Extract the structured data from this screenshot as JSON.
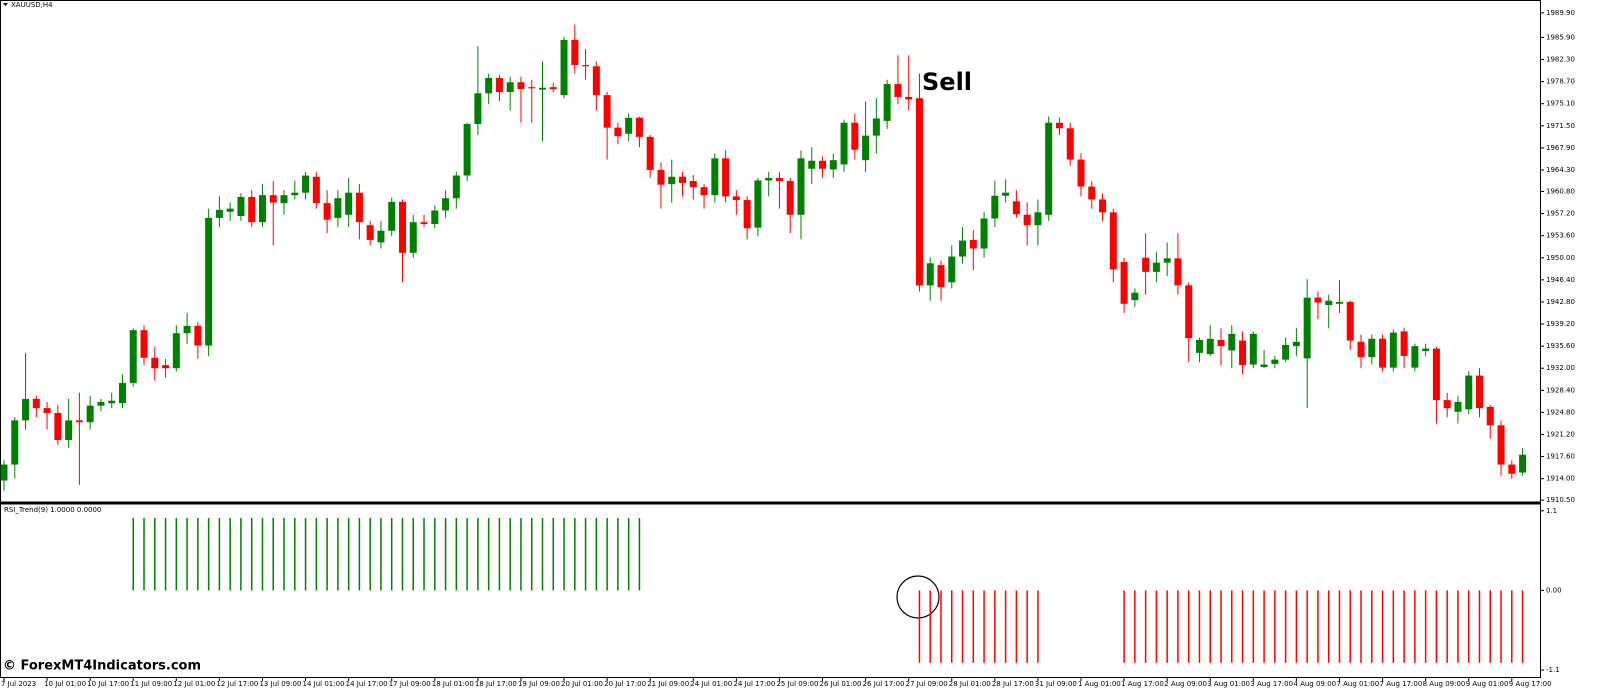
{
  "watermark": "© ForexMT4Indicators.com",
  "chart_data": [
    {
      "type": "candlestick",
      "title": "XAUUSD,H4",
      "annotation": "Sell",
      "up_color": "#008000",
      "down_color": "#ff0000",
      "ylim": [
        1910.2,
        1992.0
      ],
      "yticks": [
        {
          "value": 1989.9,
          "label": "1989.90"
        },
        {
          "value": 1985.9,
          "label": "1985.90"
        },
        {
          "value": 1982.3,
          "label": "1982.30"
        },
        {
          "value": 1978.7,
          "label": "1978.70"
        },
        {
          "value": 1975.1,
          "label": "1975.10"
        },
        {
          "value": 1971.5,
          "label": "1971.50"
        },
        {
          "value": 1967.9,
          "label": "1967.90"
        },
        {
          "value": 1964.3,
          "label": "1964.30"
        },
        {
          "value": 1960.8,
          "label": "1960.80"
        },
        {
          "value": 1957.2,
          "label": "1957.20"
        },
        {
          "value": 1953.6,
          "label": "1953.60"
        },
        {
          "value": 1950,
          "label": "1950.00"
        },
        {
          "value": 1946.4,
          "label": "1946.40"
        },
        {
          "value": 1942.8,
          "label": "1942.80"
        },
        {
          "value": 1939.2,
          "label": "1939.20"
        },
        {
          "value": 1935.6,
          "label": "1935.60"
        },
        {
          "value": 1932,
          "label": "1932.00"
        },
        {
          "value": 1928.4,
          "label": "1928.40"
        },
        {
          "value": 1924.8,
          "label": "1924.80"
        },
        {
          "value": 1921.2,
          "label": "1921.20"
        },
        {
          "value": 1917.6,
          "label": "1917.60"
        },
        {
          "value": 1914,
          "label": "1914.00"
        },
        {
          "value": 1910.5,
          "label": "1910.50"
        }
      ],
      "categories": [
        "7 Jul 2023",
        null,
        null,
        null,
        "10 Jul 01:00",
        null,
        null,
        null,
        "10 Jul 17:00",
        null,
        null,
        null,
        "11 Jul 09:00",
        null,
        null,
        null,
        "12 Jul 01:00",
        null,
        null,
        null,
        "12 Jul 17:00",
        null,
        null,
        null,
        "13 Jul 09:00",
        null,
        null,
        null,
        "14 Jul 01:00",
        null,
        null,
        null,
        "14 Jul 17:00",
        null,
        null,
        null,
        "17 Jul 09:00",
        null,
        null,
        null,
        "18 Jul 01:00",
        null,
        null,
        null,
        "18 Jul 17:00",
        null,
        null,
        null,
        "19 Jul 09:00",
        null,
        null,
        null,
        "20 Jul 01:00",
        null,
        null,
        null,
        "20 Jul 17:00",
        null,
        null,
        null,
        "21 Jul 09:00",
        null,
        null,
        null,
        "24 Jul 01:00",
        null,
        null,
        null,
        "24 Jul 17:00",
        null,
        null,
        null,
        "25 Jul 09:00",
        null,
        null,
        null,
        "26 Jul 01:00",
        null,
        null,
        null,
        "26 Jul 17:00",
        null,
        null,
        null,
        "27 Jul 09:00",
        null,
        null,
        null,
        "28 Jul 01:00",
        null,
        null,
        null,
        "28 Jul 17:00",
        null,
        null,
        null,
        "31 Jul 09:00",
        null,
        null,
        null,
        "1 Aug 01:00",
        null,
        null,
        null,
        "1 Aug 17:00",
        null,
        null,
        null,
        "2 Aug 09:00",
        null,
        null,
        null,
        "3 Aug 01:00",
        null,
        null,
        null,
        "3 Aug 17:00",
        null,
        null,
        null,
        "4 Aug 09:00",
        null,
        null,
        null,
        "7 Aug 01:00",
        null,
        null,
        null,
        "7 Aug 17:00",
        null,
        null,
        null,
        "8 Aug 09:00",
        null,
        null,
        null,
        "9 Aug 01:00",
        null,
        null,
        null,
        "9 Aug 17:00",
        null
      ],
      "open": [
        1913.7,
        1916.3,
        1923.5,
        1927,
        1925.5,
        1924.7,
        1920.3,
        1923.5,
        1923.2,
        1925.9,
        1926.3,
        1926.3,
        1929.6,
        1938.2,
        1933.7,
        1932.5,
        1932,
        1937.7,
        1938.9,
        1935.7,
        1956.5,
        1957.5,
        1956.8,
        1959.9,
        1955.8,
        1960.2,
        1958.9,
        1960.2,
        1960.6,
        1963.2,
        1958.9,
        1956.5,
        1957,
        1960.6,
        1955.3,
        1952.5,
        1954.4,
        1959.1,
        1950.8,
        1955.8,
        1955.5,
        1957.7,
        1959.7,
        1963.4,
        1971.8,
        1976.8,
        1979.3,
        1977,
        1978.6,
        1977.8,
        1977.4,
        1977.8,
        1976.5,
        1985.5,
        1981.4,
        1981.2,
        1976.5,
        1971.2,
        1970.2,
        1972.8,
        1969.7,
        1964.3,
        1962,
        1963.2,
        1962.5,
        1961.5,
        1960.2,
        1966.2,
        1960,
        1959.4,
        1954.9,
        1962.6,
        1963,
        1962.5,
        1957,
        1964.5,
        1965.8,
        1964.4,
        1965.2,
        1972,
        1965.9,
        1969.9,
        1972.3,
        1978.3,
        1976.2,
        1976,
        1945.5,
        1948.8,
        1946,
        1950.2,
        1952.9,
        1951.5,
        1956.4,
        1960.1,
        1959.2,
        1957,
        1955.3,
        1957,
        1972,
        1971.1,
        1966,
        1961.6,
        1959.5,
        1957.4,
        1949.3,
        1943.1,
        1950,
        1947.7,
        1949.2,
        1949.9,
        1945.5,
        1934.5,
        1934.3,
        1936.6,
        1934.9,
        1936.5,
        1932.6,
        1932.2,
        1932.7,
        1933.4,
        1935.6,
        1933.6,
        1943.5,
        1942.3,
        1942.5,
        1942.8,
        1936.3,
        1933.8,
        1936.8,
        1932.1,
        1938,
        1932.1,
        1934.8,
        1935.2,
        1926.8,
        1924.9,
        1925.3,
        1930.8,
        1925.7,
        1922.7,
        1916.3,
        1915
      ],
      "high": [
        1917,
        1924,
        1934.5,
        1927.5,
        1926.5,
        1926,
        1927,
        1928,
        1927.5,
        1927,
        1928,
        1931,
        1938.5,
        1939,
        1935.5,
        1933.5,
        1939,
        1941,
        1939.5,
        1958,
        1960,
        1959,
        1960.5,
        1961,
        1962,
        1962.5,
        1961,
        1962.5,
        1964,
        1964,
        1961,
        1961,
        1963,
        1962,
        1956,
        1956,
        1959.8,
        1959.5,
        1957,
        1957,
        1958.5,
        1961,
        1964,
        1972,
        1984.5,
        1980,
        1979.8,
        1979.5,
        1979.5,
        1979,
        1982,
        1978.5,
        1986,
        1988,
        1984,
        1982,
        1977,
        1972,
        1973.5,
        1973,
        1970,
        1965.5,
        1966,
        1964,
        1963.5,
        1962,
        1967,
        1967.5,
        1961,
        1960,
        1963,
        1964,
        1964,
        1963,
        1967.5,
        1968,
        1966.5,
        1967,
        1972.5,
        1973.5,
        1975.5,
        1976,
        1979,
        1983,
        1983,
        1980,
        1950,
        1949.5,
        1952,
        1955,
        1954.5,
        1957.5,
        1962.6,
        1962.8,
        1961,
        1959,
        1959.5,
        1973,
        1972.8,
        1972,
        1967,
        1962.5,
        1960.5,
        1958,
        1950,
        1945,
        1954,
        1951,
        1952.5,
        1954,
        1946,
        1937,
        1939,
        1938.5,
        1939,
        1938,
        1938,
        1935,
        1934,
        1937,
        1938.5,
        1946.5,
        1944.5,
        1944,
        1946.4,
        1943,
        1937.5,
        1937.5,
        1937.5,
        1938.3,
        1938.6,
        1936,
        1936,
        1935.5,
        1928,
        1927.5,
        1931.5,
        1932,
        1926,
        1923.5,
        1917,
        1919
      ],
      "low": [
        1912,
        1914,
        1922,
        1924,
        1922,
        1919.5,
        1919,
        1913,
        1922,
        1925,
        1925.5,
        1925.5,
        1929,
        1932.5,
        1930,
        1930.5,
        1931.5,
        1936,
        1933.5,
        1934,
        1955,
        1956,
        1956,
        1955,
        1955,
        1952,
        1957,
        1959.5,
        1959.5,
        1958,
        1954,
        1955,
        1955,
        1953,
        1952,
        1951.5,
        1953.5,
        1946,
        1950,
        1955,
        1954.8,
        1956.5,
        1958,
        1962.5,
        1970,
        1975,
        1975.5,
        1974,
        1972,
        1972,
        1969,
        1977,
        1976,
        1980,
        1979,
        1974,
        1966,
        1968.5,
        1969,
        1968,
        1963,
        1958,
        1959,
        1960,
        1959.5,
        1958,
        1959,
        1959,
        1957,
        1953,
        1953.5,
        1960,
        1958,
        1954,
        1953,
        1962,
        1963,
        1963,
        1964,
        1966,
        1964,
        1967,
        1971,
        1975,
        1974,
        1944.5,
        1943,
        1943,
        1945,
        1949,
        1948,
        1950,
        1955,
        1959,
        1956.5,
        1952,
        1952,
        1956,
        1970,
        1965,
        1960,
        1958,
        1956,
        1946,
        1941,
        1942,
        1944,
        1946,
        1947,
        1944,
        1933,
        1933,
        1934,
        1932.5,
        1932,
        1931,
        1932,
        1932,
        1932,
        1933,
        1934,
        1925.5,
        1940,
        1938.5,
        1941,
        1935,
        1932,
        1932.6,
        1931.5,
        1931.5,
        1932,
        1931.5,
        1934,
        1923,
        1924,
        1923,
        1924.5,
        1924,
        1920.5,
        1914.5,
        1914,
        1914.5
      ],
      "close": [
        1916.3,
        1923.5,
        1927,
        1925.5,
        1924.7,
        1920.3,
        1923.5,
        1923.2,
        1925.9,
        1926.5,
        1926.7,
        1929.6,
        1938.2,
        1933.7,
        1932,
        1932,
        1937.7,
        1938.9,
        1935.7,
        1956.5,
        1957.8,
        1958,
        1959.9,
        1955.8,
        1960.2,
        1959,
        1960.2,
        1960.6,
        1963.4,
        1958.9,
        1956.2,
        1959.7,
        1960.6,
        1955.8,
        1952.9,
        1954.4,
        1959.1,
        1950.8,
        1955.8,
        1955.5,
        1957.7,
        1959.7,
        1963.4,
        1971.8,
        1976.8,
        1979.3,
        1977,
        1978.6,
        1977.5,
        1977.6,
        1977.7,
        1977.5,
        1985.5,
        1981.4,
        1981.2,
        1976.5,
        1971.2,
        1969.8,
        1972.8,
        1969.7,
        1964.3,
        1961.9,
        1963.2,
        1962.2,
        1961.5,
        1960.2,
        1966.2,
        1960,
        1959.4,
        1954.8,
        1962.6,
        1963,
        1962.5,
        1957,
        1966.2,
        1965.8,
        1964.5,
        1965.9,
        1972,
        1967.6,
        1969.9,
        1972.7,
        1978.3,
        1976.2,
        1975.8,
        1945.5,
        1949.1,
        1945.2,
        1950.2,
        1952.8,
        1951.5,
        1956.4,
        1960.1,
        1960.6,
        1957.1,
        1955.3,
        1957.4,
        1972,
        1971.1,
        1966,
        1961.6,
        1959.5,
        1957.4,
        1948.1,
        1942.5,
        1944.3,
        1947.7,
        1949.2,
        1949.9,
        1945.5,
        1936.9,
        1936.6,
        1936.8,
        1935.6,
        1937.6,
        1932.5,
        1937.6,
        1932.6,
        1933.4,
        1935.8,
        1936.3,
        1943.5,
        1942.7,
        1943,
        1942.8,
        1936.5,
        1933.8,
        1936.8,
        1932.1,
        1937.8,
        1934,
        1935.6,
        1935.2,
        1926.8,
        1925.5,
        1926.5,
        1930.8,
        1925.5,
        1922.7,
        1916.3,
        1914.8,
        1917.9
      ]
    },
    {
      "type": "bar",
      "title": "RSI_Trend(9) 1.0000 0.0000",
      "positive_color": "#008000",
      "negative_color": "#ff0000",
      "ylim": [
        -1.21,
        1.18
      ],
      "yticks": [
        1.1,
        {
          "value": 0,
          "label": "0.00"
        },
        -1.1
      ],
      "values": [
        null,
        null,
        null,
        null,
        null,
        null,
        null,
        null,
        null,
        null,
        null,
        null,
        1,
        1,
        1,
        1,
        1,
        1,
        1,
        1,
        1,
        1,
        1,
        1,
        1,
        1,
        1,
        1,
        1,
        1,
        1,
        1,
        1,
        1,
        1,
        1,
        1,
        1,
        1,
        1,
        1,
        1,
        1,
        1,
        1,
        1,
        1,
        1,
        1,
        1,
        1,
        1,
        1,
        1,
        1,
        1,
        1,
        1,
        1,
        1,
        null,
        null,
        null,
        null,
        null,
        null,
        null,
        null,
        null,
        null,
        null,
        null,
        null,
        null,
        null,
        null,
        null,
        null,
        null,
        null,
        null,
        null,
        null,
        null,
        null,
        -1,
        -1,
        -1,
        -1,
        -1,
        -1,
        -1,
        -1,
        -1,
        -1,
        -1,
        -1,
        null,
        null,
        null,
        null,
        null,
        null,
        null,
        -1,
        -1,
        -1,
        -1,
        -1,
        -1,
        -1,
        -1,
        -1,
        -1,
        -1,
        -1,
        -1,
        -1,
        -1,
        -1,
        -1,
        -1,
        -1,
        -1,
        -1,
        -1,
        -1,
        -1,
        -1,
        -1,
        -1,
        -1,
        -1,
        -1,
        -1,
        -1,
        -1,
        -1,
        -1,
        -1,
        -1,
        -1
      ]
    }
  ]
}
